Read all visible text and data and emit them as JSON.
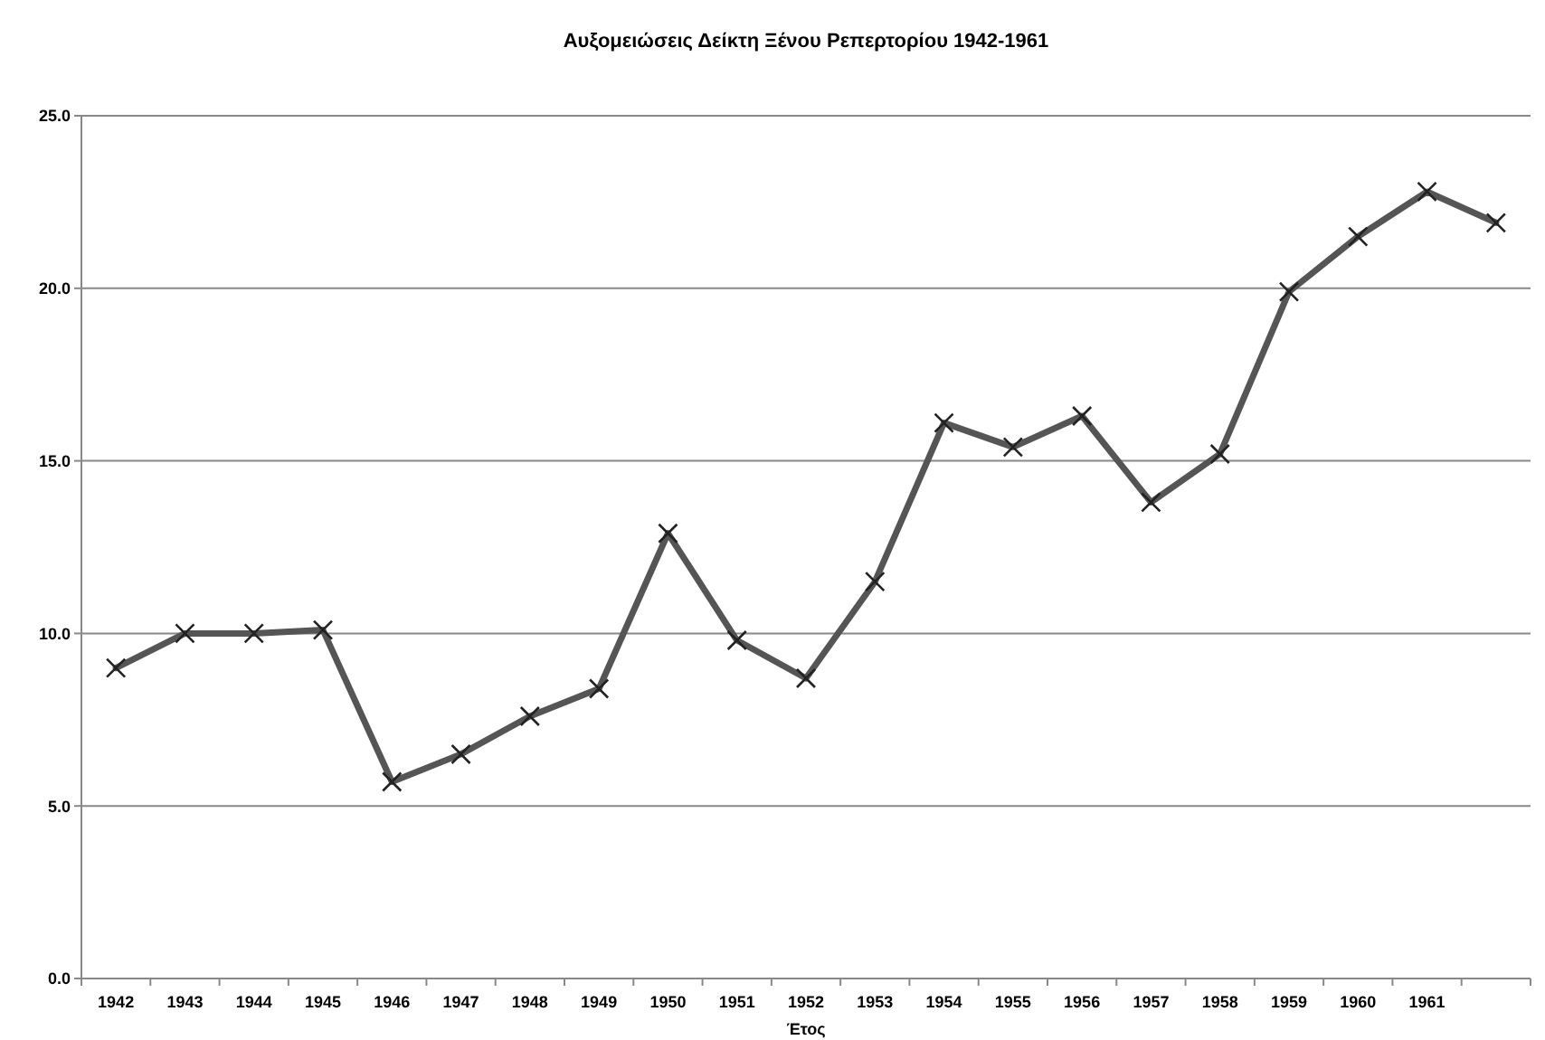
{
  "chart_data": {
    "type": "line",
    "title": "Αυξομειώσεις Δείκτη Ξένου Ρεπερτορίου 1942-1961",
    "xlabel": "Έτος",
    "categories": [
      "1942",
      "1943",
      "1944",
      "1945",
      "1946",
      "1947",
      "1948",
      "1949",
      "1950",
      "1951",
      "1952",
      "1953",
      "1954",
      "1955",
      "1956",
      "1957",
      "1958",
      "1959",
      "1960",
      "1961",
      null
    ],
    "series": [
      {
        "color": "#555555",
        "values": [
          9.0,
          10.0,
          10.0,
          10.1,
          5.7,
          6.5,
          7.6,
          8.4,
          12.9,
          9.8,
          8.7,
          11.5,
          16.1,
          15.4,
          16.3,
          13.8,
          15.2,
          19.9,
          21.5,
          22.8,
          21.9
        ]
      }
    ],
    "ylim": [
      0,
      25
    ],
    "yticks": [
      {
        "value": 0,
        "label": "0.0"
      },
      {
        "value": 5,
        "label": "5.0"
      },
      {
        "value": 10,
        "label": "10.0"
      },
      {
        "value": 15,
        "label": "15.0"
      },
      {
        "value": 20,
        "label": "20.0"
      },
      {
        "value": 25,
        "label": "25.0"
      }
    ],
    "grid": "y",
    "marker": "cross",
    "line_style": "solid"
  }
}
